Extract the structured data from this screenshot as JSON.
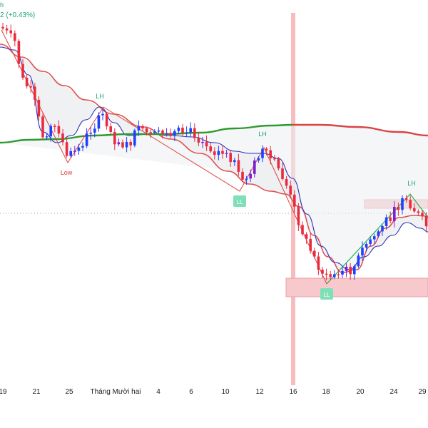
{
  "header": {
    "series_fragment": "h",
    "change_fragment": "2 (+0.43%)"
  },
  "colors": {
    "bull": "#1e40ff",
    "bear": "#ea2b3f",
    "bull_alt": "#7a1fd6",
    "ema_fast": "#2b2fb8",
    "ema_slow": "#e05050",
    "ema_long_up": "#2e9a2e",
    "ema_long_down": "#d94545",
    "structure_line_up": "#22b14c",
    "structure_line_down": "#e0403a",
    "label_green": "#1aa37a",
    "label_red": "#e0403a",
    "zone_fill": "#f7c9cc",
    "zone_stroke": "#e7a0a6",
    "highlight_band": "#f3a6a8",
    "ll_box": "#7fe0b8"
  },
  "chart_data": {
    "type": "candlestick",
    "x_ticks": [
      "19",
      "21",
      "25",
      "Tháng Mười hai",
      "4",
      "6",
      "10",
      "12",
      "16",
      "18",
      "20",
      "24",
      "29"
    ],
    "grid": false,
    "structure_labels": [
      {
        "text": "LH",
        "kind": "high"
      },
      {
        "text": "Low",
        "kind": "low"
      },
      {
        "text": "LL",
        "kind": "low-box"
      },
      {
        "text": "LH",
        "kind": "high"
      },
      {
        "text": "LL",
        "kind": "low-box"
      },
      {
        "text": "LH",
        "kind": "high"
      }
    ]
  }
}
